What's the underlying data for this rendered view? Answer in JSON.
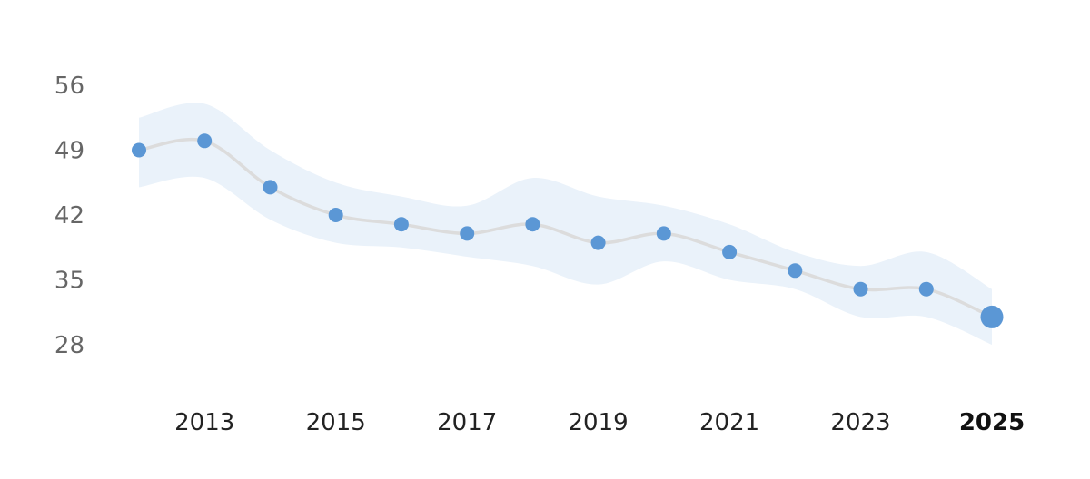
{
  "chart_data": {
    "type": "line",
    "title": "",
    "xlabel": "",
    "ylabel": "",
    "x": [
      2012,
      2013,
      2014,
      2015,
      2016,
      2017,
      2018,
      2019,
      2020,
      2021,
      2022,
      2023,
      2024,
      2025
    ],
    "series": [
      {
        "values": [
          49.0,
          50.0,
          45.0,
          42.0,
          41.0,
          40.0,
          41.0,
          39.0,
          40.0,
          38.0,
          36.0,
          34.0,
          34.0,
          31.0
        ],
        "band_lower": [
          45.0,
          46.0,
          41.5,
          39.0,
          38.5,
          37.5,
          36.5,
          34.5,
          37.0,
          35.0,
          34.0,
          31.0,
          31.0,
          28.0
        ],
        "band_upper": [
          52.5,
          54.0,
          49.0,
          45.5,
          44.0,
          43.0,
          46.0,
          44.0,
          43.0,
          41.0,
          38.0,
          36.5,
          38.0,
          34.0
        ]
      }
    ],
    "y_ticks": [
      "56",
      "49",
      "42",
      "35",
      "28"
    ],
    "x_ticks": [
      "2013",
      "2015",
      "2017",
      "2019",
      "2021",
      "2023",
      "2025"
    ],
    "highlight_x": "2025",
    "ylim": [
      28,
      56
    ],
    "grid": false,
    "colors": {
      "point": "#5b97d5",
      "line": "#dcdcdc",
      "band": "#eaf2fa"
    }
  }
}
